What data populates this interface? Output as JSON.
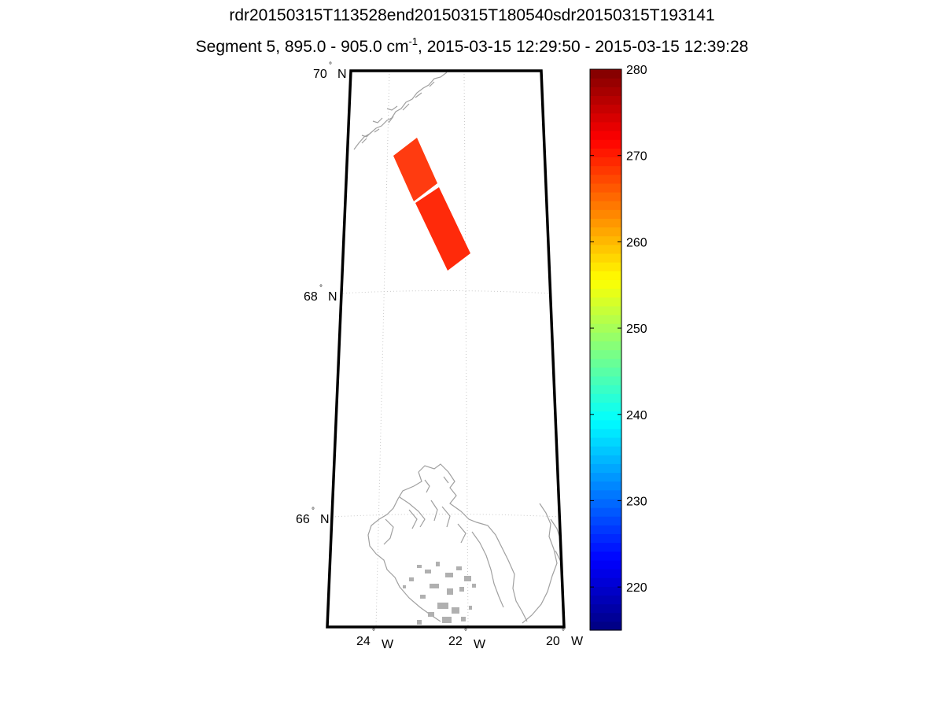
{
  "figure": {
    "title_line_1": "rdr20150315T113528end20150315T180540sdr20150315T193141",
    "title_line_2_pre": "Segment 5, 895.0 - 905.0 cm",
    "title_line_2_sup": "-1",
    "title_line_2_post": ", 2015-03-15 12:29:50 - 2015-03-15 12:39:28"
  },
  "map": {
    "lat_labels": [
      {
        "deg": "70",
        "hemi": "N"
      },
      {
        "deg": "68",
        "hemi": "N"
      },
      {
        "deg": "66",
        "hemi": "N"
      }
    ],
    "lon_labels": [
      {
        "deg": "24",
        "hemi": "W"
      },
      {
        "deg": "22",
        "hemi": "W"
      },
      {
        "deg": "20",
        "hemi": "W"
      }
    ],
    "degree_symbol": "°",
    "swath_color": "#ff2a0a",
    "swath_color_upper": "#ff3b10",
    "coast_color": "#a0a0a0",
    "grid_color": "#c8c8c8"
  },
  "colorbar": {
    "min": 215,
    "max": 280,
    "ticks": [
      "220",
      "230",
      "240",
      "250",
      "260",
      "270",
      "280"
    ],
    "colormap": "jet"
  }
}
